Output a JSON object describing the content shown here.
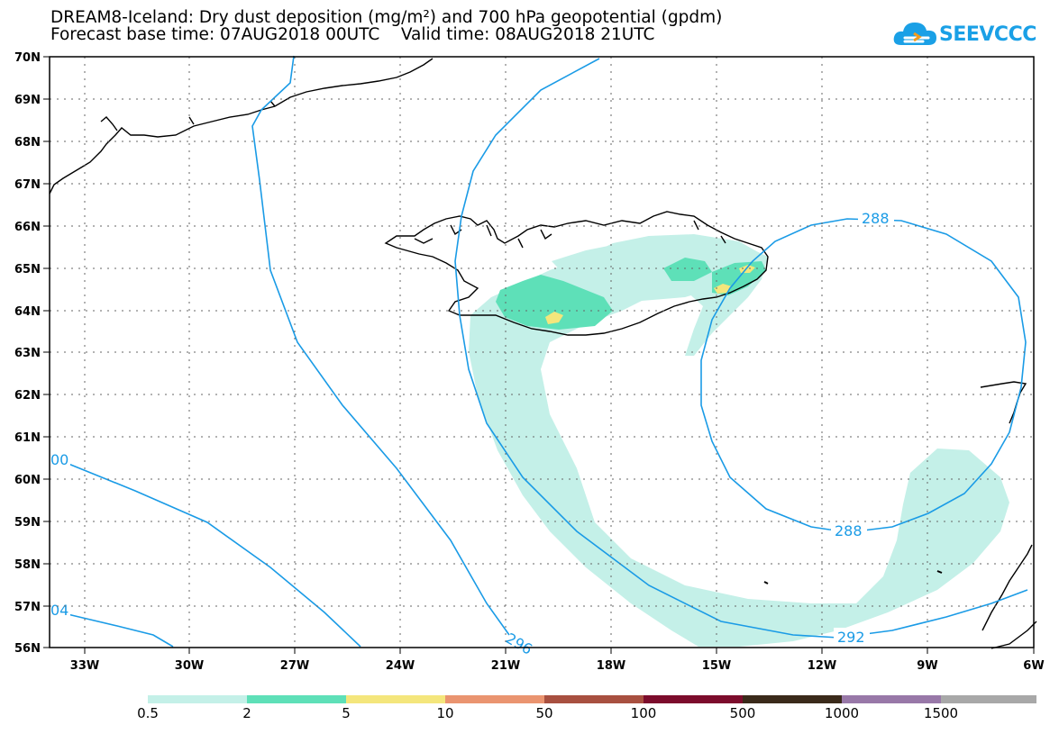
{
  "title": {
    "line1": "DREAM8-Iceland: Dry dust deposition (mg/m²) and 700 hPa geopotential (gpdm)",
    "line2": "Forecast base time: 07AUG2018 00UTC    Valid time: 08AUG2018 21UTC"
  },
  "logo": {
    "text": "SEEVCCC",
    "icon": "cloud-logo-icon",
    "color": "#1aa0e6"
  },
  "map": {
    "lat_range": [
      56,
      70
    ],
    "lon_range": [
      -34,
      -6
    ],
    "lat_ticks": [
      "70N",
      "69N",
      "68N",
      "67N",
      "66N",
      "65N",
      "64N",
      "63N",
      "62N",
      "61N",
      "60N",
      "59N",
      "58N",
      "57N",
      "56N"
    ],
    "lon_ticks": [
      "33W",
      "30W",
      "27W",
      "24W",
      "21W",
      "18W",
      "15W",
      "12W",
      "9W",
      "6W"
    ],
    "grid": true,
    "contour_labels": [
      "288",
      "288",
      "292",
      "296",
      "00",
      "04"
    ],
    "contour_color": "#1a9be6"
  },
  "legend": {
    "labels": [
      "0.5",
      "2",
      "5",
      "10",
      "50",
      "100",
      "500",
      "1000",
      "1500"
    ],
    "colors": [
      "#c4f0e8",
      "#5ee0b8",
      "#f4e67c",
      "#ea9470",
      "#a85040",
      "#7c0c2c",
      "#3a2a1a",
      "#9878a8",
      "#a8a8a8"
    ]
  }
}
